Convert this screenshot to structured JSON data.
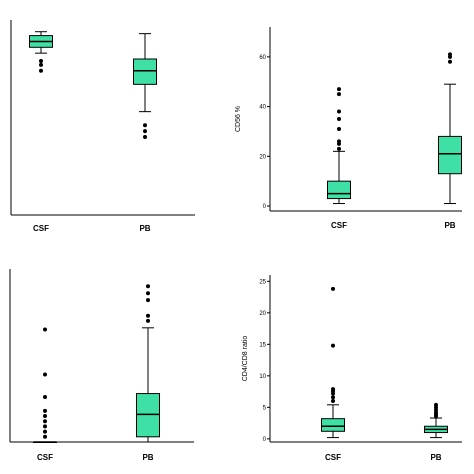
{
  "chart_data": [
    {
      "type": "boxplot",
      "title": "",
      "ylabel": "",
      "categories": [
        "CSF",
        "PB"
      ],
      "ylim": [
        0,
        100
      ],
      "yticks": [],
      "boxes": [
        {
          "category": "CSF",
          "color": "#3fe0a6",
          "whisker_low": 83,
          "q1": 86,
          "median": 89,
          "q3": 92,
          "whisker_high": 94,
          "outliers": [
            79,
            77,
            74
          ]
        },
        {
          "category": "PB",
          "color": "#3fe0a6",
          "whisker_low": 53,
          "q1": 67,
          "median": 74,
          "q3": 80,
          "whisker_high": 93,
          "outliers": [
            46,
            43,
            40
          ]
        }
      ]
    },
    {
      "type": "boxplot",
      "title": "",
      "ylabel": "CD56 %",
      "categories": [
        "CSF",
        "PB"
      ],
      "ylim": [
        -2,
        72
      ],
      "yticks": [
        "0",
        "20",
        "40",
        "60"
      ],
      "boxes": [
        {
          "category": "CSF",
          "color": "#3fe0a6",
          "whisker_low": 1,
          "q1": 3,
          "median": 5,
          "q3": 10,
          "whisker_high": 22,
          "outliers": [
            23,
            25,
            26,
            31,
            35,
            38,
            45,
            47
          ]
        },
        {
          "category": "PB",
          "color": "#3fe0a6",
          "whisker_low": 1,
          "q1": 13,
          "median": 21,
          "q3": 28,
          "whisker_high": 49,
          "outliers": [
            58,
            60,
            61
          ]
        }
      ]
    },
    {
      "type": "boxplot",
      "title": "",
      "ylabel": "",
      "categories": [
        "CSF",
        "PB"
      ],
      "ylim": [
        0,
        100
      ],
      "yticks": [],
      "boxes": [
        {
          "category": "CSF",
          "color": "#3fe0a6",
          "whisker_low": 0,
          "q1": 0,
          "median": 0,
          "q3": 0,
          "whisker_high": 0,
          "outliers": [
            3,
            6,
            9,
            12,
            15,
            18,
            26,
            39,
            65
          ]
        },
        {
          "category": "PB",
          "color": "#3fe0a6",
          "whisker_low": 0,
          "q1": 3,
          "median": 16,
          "q3": 28,
          "whisker_high": 66,
          "outliers": [
            70,
            73,
            82,
            86,
            90
          ]
        }
      ]
    },
    {
      "type": "boxplot",
      "title": "",
      "ylabel": "CD4/CD8 ratio",
      "categories": [
        "CSF",
        "PB"
      ],
      "ylim": [
        -0.5,
        26
      ],
      "yticks": [
        "0",
        "5",
        "10",
        "15",
        "20",
        "25"
      ],
      "boxes": [
        {
          "category": "CSF",
          "color": "#3fe0a6",
          "whisker_low": 0.2,
          "q1": 1.2,
          "median": 2.0,
          "q3": 3.2,
          "whisker_high": 5.4,
          "outliers": [
            6.0,
            6.6,
            7.2,
            7.6,
            7.9,
            14.8,
            23.8
          ]
        },
        {
          "category": "PB",
          "color": "#3fe0a6",
          "whisker_low": 0.2,
          "q1": 1.0,
          "median": 1.5,
          "q3": 2.0,
          "whisker_high": 3.3,
          "outliers": [
            3.6,
            3.9,
            4.2,
            4.6,
            5.0,
            5.4
          ]
        }
      ]
    }
  ]
}
